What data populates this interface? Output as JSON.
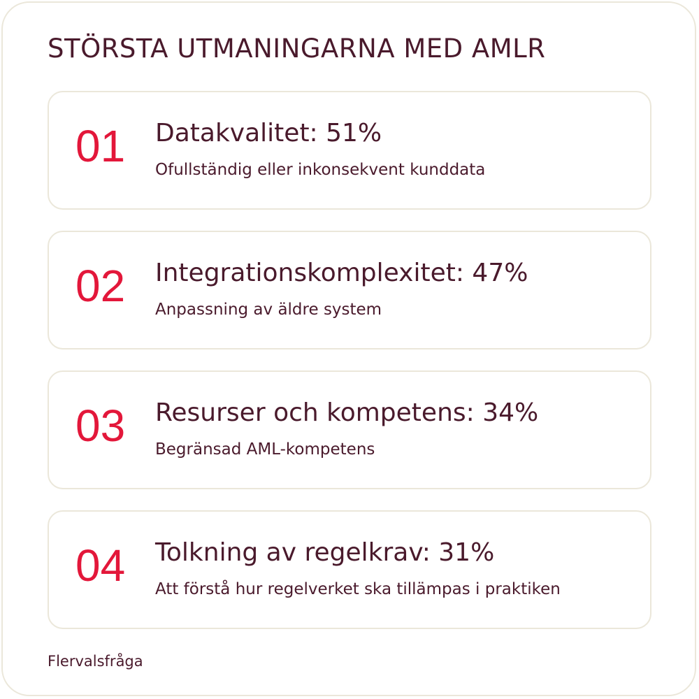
{
  "header": {
    "title": "STÖRSTA UTMANINGARNA MED AMLR"
  },
  "items": [
    {
      "number": "01",
      "heading": "Datakvalitet: 51%",
      "description": "Ofullständig eller inkonsekvent kunddata"
    },
    {
      "number": "02",
      "heading": "Integrationskomplexitet: 47%",
      "description": "Anpassning av äldre system"
    },
    {
      "number": "03",
      "heading": "Resurser och kompetens: 34%",
      "description": "Begränsad AML-kompetens"
    },
    {
      "number": "04",
      "heading": "Tolkning av regelkrav: 31%",
      "description": "Att förstå hur regelverket ska tillämpas i praktiken"
    }
  ],
  "footer": {
    "note": "Flervalsfråga"
  }
}
